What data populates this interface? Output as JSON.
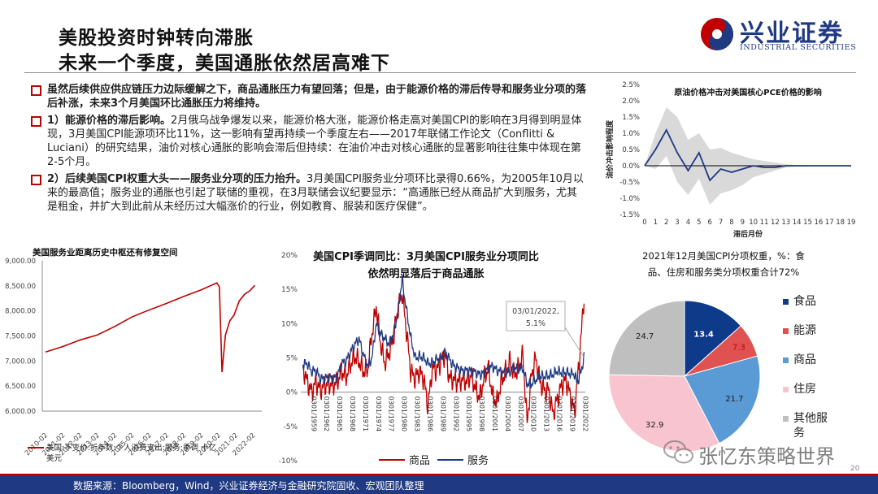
{
  "header": {
    "title_line1": "美股投资时钟转向滞胀",
    "title_line2": "未来一个季度，美国通胀依然居高难下",
    "logo_text": "兴业证券",
    "logo_sub": "INDUSTRIAL SECURITIES"
  },
  "bullets": [
    {
      "bold_text": "虽然后续供应供应链压力边际缓解之下，商品通胀压力有望回落；但是，由于能源价格的滞后传导和服务业分项的落后补涨，未来3个月美国环比通胀压力将维持。",
      "rest_text": ""
    },
    {
      "bold_text": "1）能源价格的滞后影响。",
      "rest_text": "2月俄乌战争爆发以来，能源价格大涨，能源价格走高对美国CPI的影响在3月得到明显体现，3月美国CPI能源项环比11%，这一影响有望再持续一个季度左右——2017年联储工作论文（Conflitti & Luciani）的研究结果，油价对核心通胀的影响会滞后但持续：在油价冲击对核心通胀的显著影响往往集中体现在第2-5个月。"
    },
    {
      "bold_text": "2）后续美国CPI权重大头——服务业分项的压力抬升。",
      "rest_text": "3月美国CPI服务业分项环比录得0.66%，为2005年10月以来的最高值；服务业的通胀也引起了联储的重视，在3月联储会议纪要显示：“高通胀已经从商品扩大到服务，尤其是租金，并扩大到此前从未经历过大幅涨价的行业，例如教育、服装和医疗保健”。"
    }
  ],
  "footer": {
    "source": "数据来源：Bloomberg，Wind，兴业证券经济与金融研究院固收、宏观团队整理",
    "page": "20"
  },
  "watermark": {
    "text": "张忆东策略世界"
  },
  "chart_data": [
    {
      "type": "line",
      "title": "原油价格冲击对美国核心PCE价格的影响",
      "ylabel": "油价冲击影响程度",
      "xlabel": "滞后月份",
      "x": [
        0,
        1,
        2,
        3,
        4,
        5,
        6,
        7,
        8,
        9,
        10,
        11,
        12,
        13,
        14,
        15,
        16,
        17,
        18,
        19
      ],
      "y": [
        0.0,
        0.5,
        1.1,
        0.4,
        -0.15,
        0.4,
        -0.45,
        -0.1,
        -0.2,
        -0.1,
        0.0,
        -0.05,
        -0.05,
        0.0,
        0.0,
        0.0,
        0.0,
        0.0,
        0.0,
        0.0
      ],
      "band_upper": [
        0.0,
        1.0,
        1.8,
        1.5,
        0.8,
        1.0,
        0.5,
        0.55,
        0.4,
        0.3,
        0.2,
        0.15,
        0.1,
        0.05,
        0.02,
        0.02,
        0.01,
        0.01,
        0.01,
        0.01
      ],
      "band_lower": [
        0.0,
        -0.1,
        0.3,
        -0.5,
        -0.9,
        -0.4,
        -1.2,
        -0.85,
        -0.75,
        -0.6,
        -0.35,
        -0.25,
        -0.15,
        -0.05,
        -0.02,
        -0.02,
        -0.01,
        -0.01,
        -0.01,
        -0.01
      ],
      "ylim": [
        -1.5,
        2.5
      ],
      "ytick_labels": [
        "-1.5%",
        "-1.0%",
        "-0.5%",
        "0.0%",
        "0.5%",
        "1.0%",
        "1.5%",
        "2.0%",
        "2.5%"
      ],
      "colors": {
        "line": "#1f3a82",
        "band": "#d9d9d9"
      }
    },
    {
      "type": "line",
      "title": "美国服务业距离历史中枢还有修复空间",
      "legend": "美国:不变价:折年数:个人消费支出:服务:季调  十亿美元",
      "x": [
        "2010-02",
        "2011-02",
        "2012-02",
        "2013-02",
        "2014-02",
        "2015-02",
        "2016-02",
        "2017-02",
        "2018-02",
        "2019-02",
        "2020-02",
        "2021-02",
        "2022-02"
      ],
      "y": [
        7200,
        7300,
        7420,
        7530,
        7690,
        7880,
        8020,
        8150,
        8290,
        8420,
        8560,
        7950,
        8490
      ],
      "points": [
        [
          2010.1,
          7180
        ],
        [
          2011.1,
          7290
        ],
        [
          2012.1,
          7420
        ],
        [
          2013.1,
          7520
        ],
        [
          2014.1,
          7690
        ],
        [
          2015.1,
          7880
        ],
        [
          2016.1,
          8020
        ],
        [
          2017.1,
          8150
        ],
        [
          2018.1,
          8290
        ],
        [
          2019.1,
          8420
        ],
        [
          2020.0,
          8560
        ],
        [
          2020.15,
          8480
        ],
        [
          2020.3,
          6780
        ],
        [
          2020.5,
          7520
        ],
        [
          2020.75,
          7800
        ],
        [
          2021.0,
          7920
        ],
        [
          2021.3,
          8200
        ],
        [
          2021.6,
          8330
        ],
        [
          2021.9,
          8400
        ],
        [
          2022.2,
          8510
        ]
      ],
      "ylim": [
        6000,
        9000
      ],
      "ytick_labels": [
        "6,000.00",
        "6,500.00",
        "7,000.00",
        "7,500.00",
        "8,000.00",
        "8,500.00",
        "9,000.00"
      ],
      "colors": {
        "line": "#c00000"
      }
    },
    {
      "type": "line",
      "title": "美国CPI季调同比：3月美国CPI服务业分项同比依然明显落后于商品通胀",
      "annotation": {
        "date": "03/01/2022,",
        "value": "5.1%"
      },
      "x_tick_labels": [
        "0301/1959",
        "0301/1962",
        "0301/1965",
        "0301/1968",
        "0301/1971",
        "0301/1974",
        "0301/1977",
        "0301/1980",
        "0301/1983",
        "0301/1986",
        "0301/1989",
        "0301/1992",
        "0301/1995",
        "0301/1998",
        "0301/2001",
        "0301/2004",
        "0301/2007",
        "0301/2010",
        "0301/2013",
        "0301/2016",
        "0301/2019",
        "0301/2022"
      ],
      "ylim": [
        -10,
        20
      ],
      "ytick_labels": [
        "-10%",
        "-5%",
        "0%",
        "5%",
        "10%",
        "15%",
        "20%"
      ],
      "series": [
        {
          "name": "商品",
          "color": "#c00000",
          "points": [
            [
              1957,
              3.5
            ],
            [
              1958,
              1.5
            ],
            [
              1959,
              0.0
            ],
            [
              1960,
              1.5
            ],
            [
              1961,
              0.3
            ],
            [
              1962,
              1.0
            ],
            [
              1963,
              1.2
            ],
            [
              1964,
              1.0
            ],
            [
              1965,
              1.6
            ],
            [
              1966,
              3.0
            ],
            [
              1967,
              2.2
            ],
            [
              1968,
              4.0
            ],
            [
              1969,
              5.2
            ],
            [
              1970,
              4.5
            ],
            [
              1971,
              3.0
            ],
            [
              1972,
              3.2
            ],
            [
              1973,
              8.5
            ],
            [
              1974,
              12.5
            ],
            [
              1975,
              7.0
            ],
            [
              1976,
              4.2
            ],
            [
              1977,
              5.8
            ],
            [
              1978,
              8.0
            ],
            [
              1979,
              12.0
            ],
            [
              1980,
              14.5
            ],
            [
              1981,
              9.0
            ],
            [
              1982,
              3.0
            ],
            [
              1983,
              2.0
            ],
            [
              1984,
              3.0
            ],
            [
              1985,
              2.0
            ],
            [
              1986,
              -2.0
            ],
            [
              1987,
              3.5
            ],
            [
              1988,
              3.2
            ],
            [
              1989,
              4.5
            ],
            [
              1990,
              5.5
            ],
            [
              1991,
              2.0
            ],
            [
              1992,
              1.8
            ],
            [
              1993,
              1.5
            ],
            [
              1994,
              1.8
            ],
            [
              1995,
              1.5
            ],
            [
              1996,
              2.5
            ],
            [
              1997,
              0.5
            ],
            [
              1998,
              -0.8
            ],
            [
              1999,
              2.0
            ],
            [
              2000,
              3.5
            ],
            [
              2001,
              -0.5
            ],
            [
              2002,
              -1.5
            ],
            [
              2003,
              1.5
            ],
            [
              2004,
              3.0
            ],
            [
              2005,
              4.5
            ],
            [
              2006,
              2.5
            ],
            [
              2007,
              3.5
            ],
            [
              2008,
              5.5
            ],
            [
              2009,
              -4.5
            ],
            [
              2010,
              2.5
            ],
            [
              2011,
              5.0
            ],
            [
              2012,
              1.5
            ],
            [
              2013,
              0.2
            ],
            [
              2014,
              0.3
            ],
            [
              2015,
              -3.2
            ],
            [
              2016,
              -1.0
            ],
            [
              2017,
              1.0
            ],
            [
              2018,
              1.8
            ],
            [
              2019,
              -0.5
            ],
            [
              2020,
              -3.0
            ],
            [
              2020.5,
              0.5
            ],
            [
              2021,
              4.0
            ],
            [
              2021.5,
              8.0
            ],
            [
              2022.2,
              14.0
            ]
          ]
        },
        {
          "name": "服务",
          "color": "#1f3a82",
          "points": [
            [
              1957,
              4.0
            ],
            [
              1958,
              4.2
            ],
            [
              1959,
              3.0
            ],
            [
              1960,
              3.2
            ],
            [
              1961,
              2.0
            ],
            [
              1962,
              2.0
            ],
            [
              1963,
              2.2
            ],
            [
              1964,
              2.0
            ],
            [
              1965,
              2.3
            ],
            [
              1966,
              4.3
            ],
            [
              1967,
              4.5
            ],
            [
              1968,
              5.8
            ],
            [
              1969,
              7.0
            ],
            [
              1970,
              7.8
            ],
            [
              1971,
              5.5
            ],
            [
              1972,
              3.8
            ],
            [
              1973,
              5.0
            ],
            [
              1974,
              10.0
            ],
            [
              1975,
              8.5
            ],
            [
              1976,
              7.8
            ],
            [
              1977,
              7.0
            ],
            [
              1978,
              8.5
            ],
            [
              1979,
              11.5
            ],
            [
              1980,
              16.5
            ],
            [
              1981,
              12.0
            ],
            [
              1982,
              8.0
            ],
            [
              1983,
              5.0
            ],
            [
              1984,
              5.2
            ],
            [
              1985,
              5.0
            ],
            [
              1986,
              4.2
            ],
            [
              1987,
              4.3
            ],
            [
              1988,
              4.8
            ],
            [
              1989,
              5.0
            ],
            [
              1990,
              5.8
            ],
            [
              1991,
              4.8
            ],
            [
              1992,
              3.8
            ],
            [
              1993,
              3.5
            ],
            [
              1994,
              3.1
            ],
            [
              1995,
              3.2
            ],
            [
              1996,
              3.1
            ],
            [
              1997,
              2.9
            ],
            [
              1998,
              2.6
            ],
            [
              1999,
              2.8
            ],
            [
              2000,
              3.5
            ],
            [
              2001,
              3.8
            ],
            [
              2002,
              3.2
            ],
            [
              2003,
              3.0
            ],
            [
              2004,
              2.8
            ],
            [
              2005,
              3.0
            ],
            [
              2006,
              3.6
            ],
            [
              2007,
              3.4
            ],
            [
              2008,
              3.5
            ],
            [
              2009,
              1.2
            ],
            [
              2010,
              1.2
            ],
            [
              2011,
              1.8
            ],
            [
              2012,
              2.3
            ],
            [
              2013,
              2.3
            ],
            [
              2014,
              2.4
            ],
            [
              2015,
              2.6
            ],
            [
              2016,
              3.1
            ],
            [
              2017,
              2.8
            ],
            [
              2018,
              2.9
            ],
            [
              2019,
              2.7
            ],
            [
              2020,
              2.6
            ],
            [
              2020.5,
              1.5
            ],
            [
              2021,
              2.0
            ],
            [
              2021.5,
              3.0
            ],
            [
              2022.2,
              5.1
            ]
          ]
        }
      ]
    },
    {
      "type": "pie",
      "title": "2021年12月美国CPI分项权重，%：食品、住房和服务类分项权重合计72%",
      "slices": [
        {
          "label": "食品",
          "value": 13.4,
          "color": "#0e3a8a",
          "text_color": "#ffffff"
        },
        {
          "label": "能源",
          "value": 7.3,
          "color": "#e05252",
          "text_color": "#c00000"
        },
        {
          "label": "商品",
          "value": 21.7,
          "color": "#5b9bd5",
          "text_color": "#1a1a1a"
        },
        {
          "label": "住房",
          "value": 32.9,
          "color": "#f8c4cf",
          "text_color": "#1a1a1a"
        },
        {
          "label": "其他服务",
          "value": 24.7,
          "color": "#bfbfbf",
          "text_color": "#1a1a1a"
        }
      ]
    }
  ]
}
